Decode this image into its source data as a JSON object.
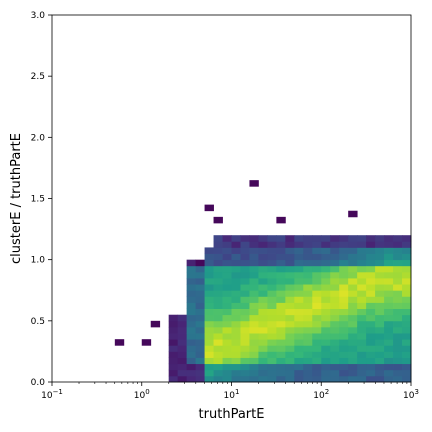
{
  "chart_data": {
    "type": "heatmap",
    "title": "",
    "xlabel": "truthPartE",
    "ylabel": "clusterE / truthPartE",
    "x_scale": "log",
    "xlim": [
      0.1,
      1000
    ],
    "ylim": [
      0.0,
      3.0
    ],
    "grid": false,
    "colormap": "viridis",
    "x_ticks": [
      {
        "value": 0.1,
        "base": "10",
        "exp": "−1"
      },
      {
        "value": 1,
        "base": "10",
        "exp": "0"
      },
      {
        "value": 10,
        "base": "10",
        "exp": "1"
      },
      {
        "value": 100,
        "base": "10",
        "exp": "2"
      },
      {
        "value": 1000,
        "base": "10",
        "exp": "3"
      }
    ],
    "y_ticks": [
      {
        "value": 0.0,
        "label": "0.0"
      },
      {
        "value": 0.5,
        "label": "0.5"
      },
      {
        "value": 1.0,
        "label": "1.0"
      },
      {
        "value": 1.5,
        "label": "1.5"
      },
      {
        "value": 2.0,
        "label": "2.0"
      },
      {
        "value": 2.5,
        "label": "2.5"
      },
      {
        "value": 3.0,
        "label": "3.0"
      }
    ],
    "log10_x_bin_edges": {
      "min": -1.0,
      "max": 3.0,
      "count": 40
    },
    "y_bin_edges": {
      "min": 0.0,
      "max": 3.0,
      "count": 60
    },
    "notes_isolated_cells": [
      [
        0.558,
        0.33
      ],
      [
        1.2,
        0.33
      ],
      [
        1.45,
        0.45
      ],
      [
        6.0,
        1.42
      ],
      [
        7.0,
        1.31
      ],
      [
        19.0,
        1.64
      ],
      [
        39.0,
        1.31
      ],
      [
        240.0,
        1.36
      ]
    ]
  }
}
